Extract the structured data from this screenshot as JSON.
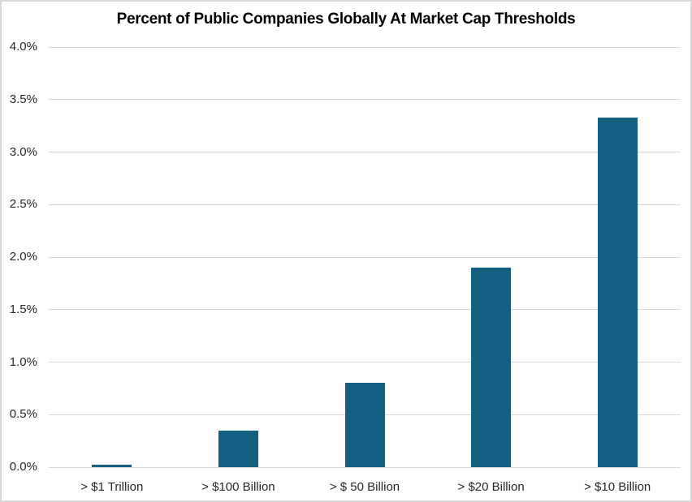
{
  "chart_data": {
    "type": "bar",
    "title": "Percent of Public Companies Globally At Market Cap Thresholds",
    "categories": [
      "> $1 Trillion",
      "> $100 Billion",
      "> $ 50 Billion",
      "> $20 Billion",
      "> $10 Billion"
    ],
    "values": [
      0.02,
      0.35,
      0.8,
      1.9,
      3.33
    ],
    "value_unit": "%",
    "xlabel": "",
    "ylabel": "",
    "ylim": [
      0,
      4.0
    ],
    "y_tick_step": 0.5,
    "y_tick_labels": [
      "0.0%",
      "0.5%",
      "1.0%",
      "1.5%",
      "2.0%",
      "2.5%",
      "3.0%",
      "3.5%",
      "4.0%"
    ],
    "grid": true,
    "legend": false,
    "colors": {
      "bar": "#156082",
      "gridline": "#D9D9D9",
      "axis_line": "#D9D9D9",
      "tick_text": "#262626",
      "title_text": "#000000",
      "background": "#FFFFFF",
      "frame_border": "#D9D9D9"
    }
  }
}
